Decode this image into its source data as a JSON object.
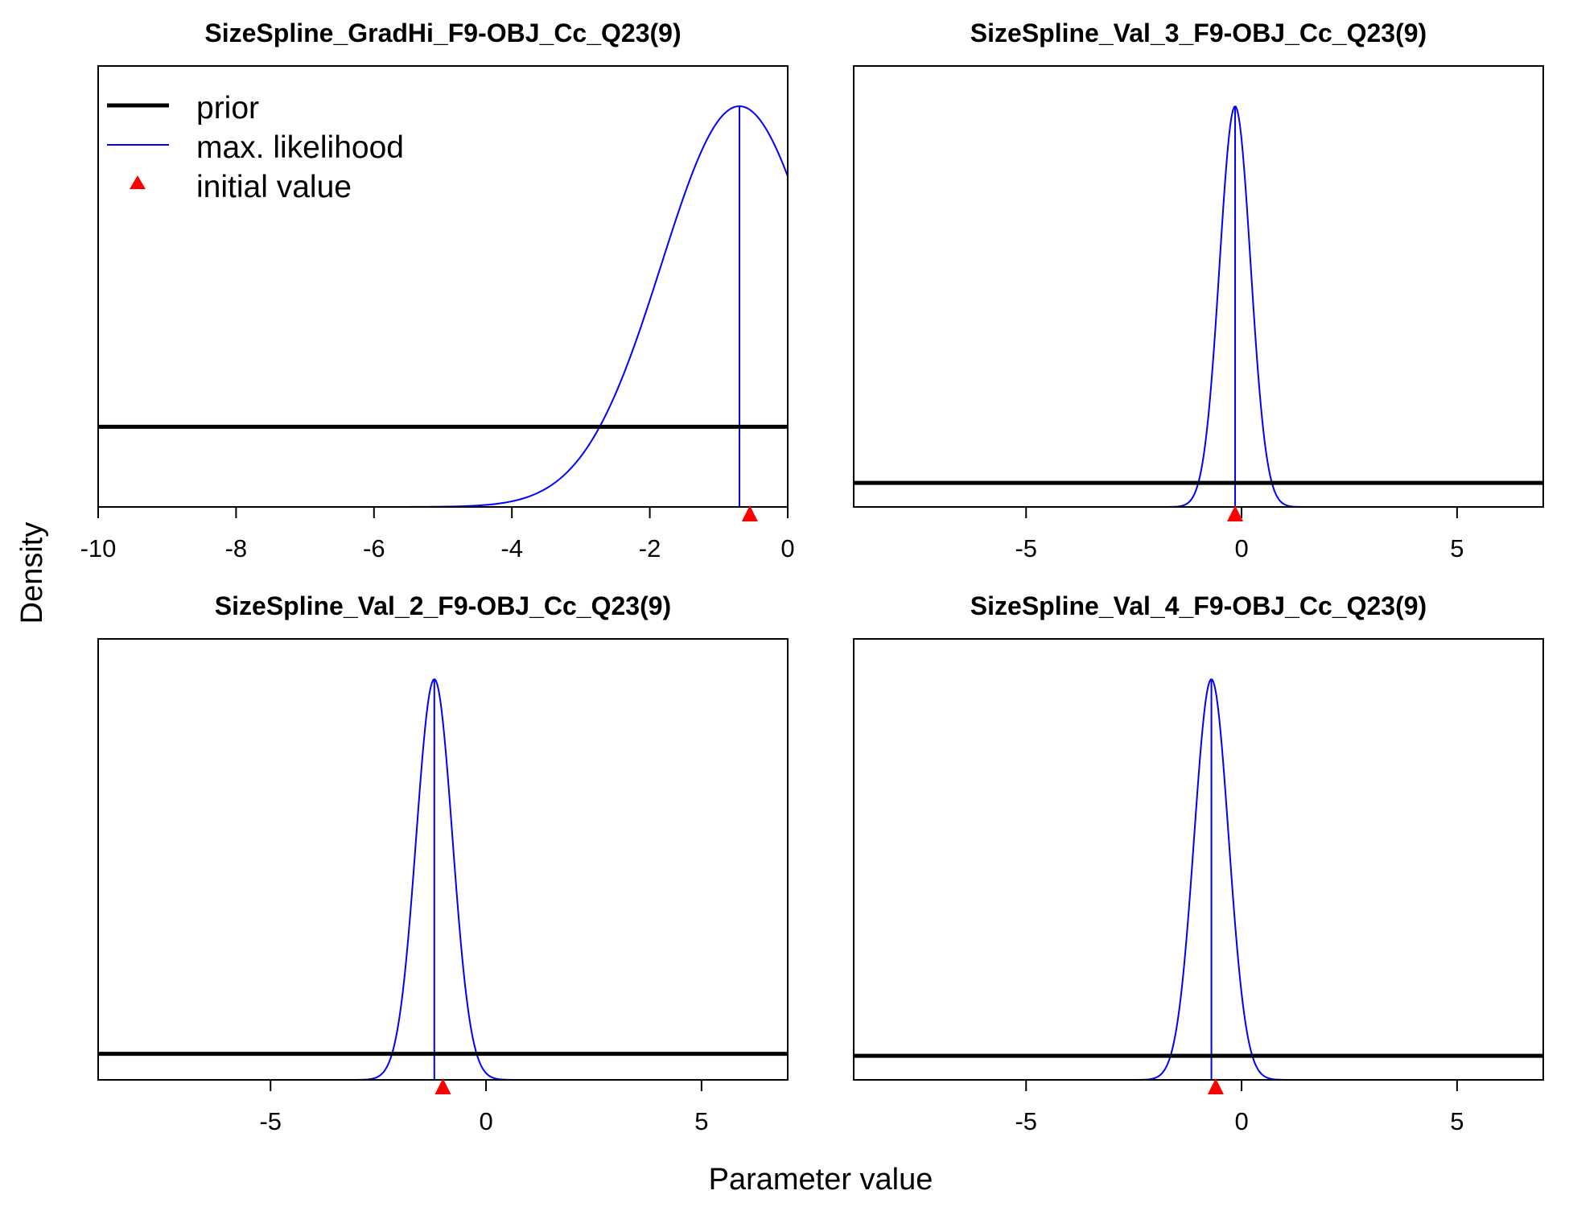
{
  "figure": {
    "xlabel": "Parameter value",
    "ylabel": "Density"
  },
  "legend": {
    "placement": "top-left of first panel",
    "items": [
      {
        "label": "prior",
        "kind": "line",
        "color": "#000000"
      },
      {
        "label": "max. likelihood",
        "kind": "line",
        "color": "#0000ff"
      },
      {
        "label": "initial value",
        "kind": "triangle",
        "color": "#ff0000"
      }
    ]
  },
  "colors": {
    "prior": "#000000",
    "likelihood": "#0000ff",
    "initial": "#ff0000"
  },
  "chart_data": [
    {
      "type": "line",
      "title": "SizeSpline_GradHi_F9-OBJ_Cc_Q23(9)",
      "xlim": [
        -10,
        0
      ],
      "xticks": [
        -10,
        -8,
        -6,
        -4,
        -2,
        0
      ],
      "xtick_labels": [
        "-10",
        "-8",
        "-6",
        "-4",
        "-2",
        "0"
      ],
      "ylim": [
        0,
        1
      ],
      "prior_level": 0.2,
      "likelihood": {
        "mode": -0.7,
        "sd": 1.13
      },
      "mle": -0.7,
      "initial_value": -0.55
    },
    {
      "type": "line",
      "title": "SizeSpline_Val_3_F9-OBJ_Cc_Q23(9)",
      "xlim": [
        -9,
        7
      ],
      "xticks": [
        -5,
        0,
        5
      ],
      "xtick_labels": [
        "-5",
        "0",
        "5"
      ],
      "ylim": [
        0,
        1
      ],
      "prior_level": 0.06,
      "likelihood": {
        "mode": -0.15,
        "sd": 0.36
      },
      "mle": -0.15,
      "initial_value": -0.15
    },
    {
      "type": "line",
      "title": "SizeSpline_Val_2_F9-OBJ_Cc_Q23(9)",
      "xlim": [
        -9,
        7
      ],
      "xticks": [
        -5,
        0,
        5
      ],
      "xtick_labels": [
        "-5",
        "0",
        "5"
      ],
      "ylim": [
        0,
        1
      ],
      "prior_level": 0.065,
      "likelihood": {
        "mode": -1.2,
        "sd": 0.42
      },
      "mle": -1.2,
      "initial_value": -1.0
    },
    {
      "type": "line",
      "title": "SizeSpline_Val_4_F9-OBJ_Cc_Q23(9)",
      "xlim": [
        -9,
        7
      ],
      "xticks": [
        -5,
        0,
        5
      ],
      "xtick_labels": [
        "-5",
        "0",
        "5"
      ],
      "ylim": [
        0,
        1
      ],
      "prior_level": 0.06,
      "likelihood": {
        "mode": -0.7,
        "sd": 0.4
      },
      "mle": -0.7,
      "initial_value": -0.6
    }
  ]
}
